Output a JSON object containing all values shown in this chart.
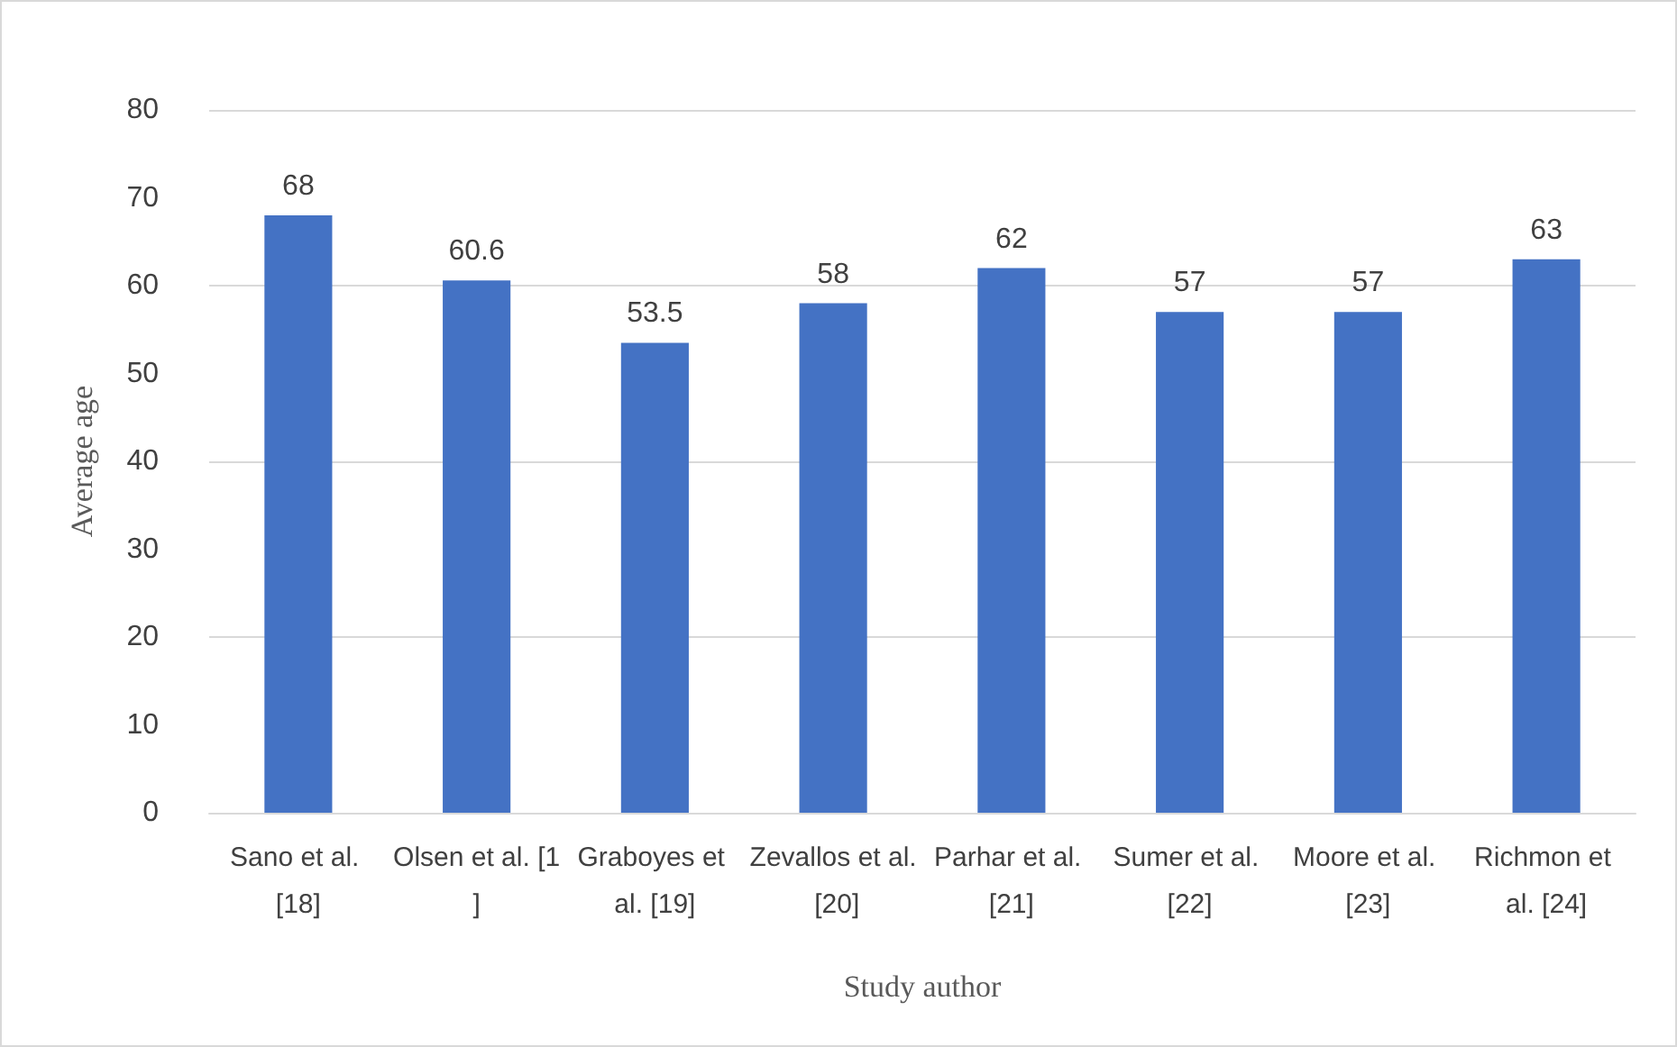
{
  "chart_data": {
    "type": "bar",
    "xlabel": "Study author",
    "ylabel": "Average age",
    "categories": [
      "Sano et al. [18]",
      "Olsen et al. [1]",
      "Graboyes et al. [19]",
      "Zevallos et al. [20]",
      "Parhar et al. [21]",
      "Sumer et al. [22]",
      "Moore et al. [23]",
      "Richmon et al. [24]"
    ],
    "values": [
      68,
      60.6,
      53.5,
      58,
      62,
      57,
      57,
      63
    ],
    "color": "#4472c4",
    "ylim": [
      0,
      80
    ],
    "yticks": [
      0,
      10,
      20,
      30,
      40,
      50,
      60,
      70,
      80
    ],
    "grid": "y",
    "data_labels": true
  }
}
